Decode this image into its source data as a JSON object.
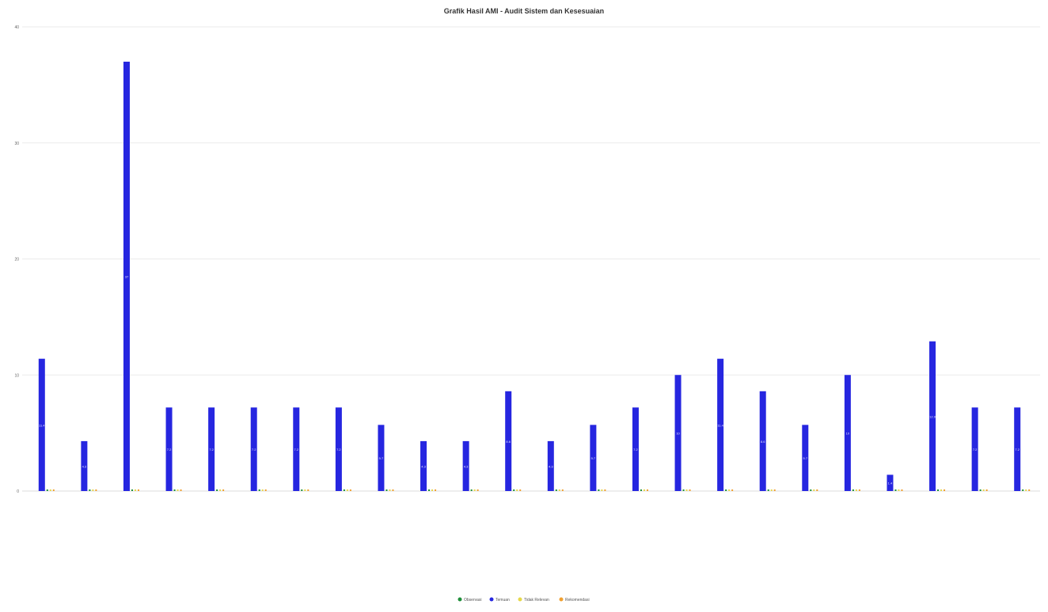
{
  "chart_data": {
    "type": "bar",
    "title": "Grafik Hasil AMI - Audit Sistem dan Kesesuaian",
    "xlabel": "",
    "ylabel": "",
    "ylim": [
      0,
      40
    ],
    "yticks": [
      "0",
      "10",
      "20",
      "30",
      "40"
    ],
    "grid": true,
    "legend_position": "bottom",
    "categories": [
      "",
      "",
      "",
      "",
      "",
      "",
      "",
      "",
      "",
      "",
      "",
      "",
      "",
      "",
      "",
      "",
      "",
      "",
      "",
      "",
      "",
      "",
      "",
      ""
    ],
    "series": [
      {
        "name": "Observasi",
        "color": "#1f8f3a",
        "values": [
          0,
          0,
          0,
          0,
          0,
          0,
          0,
          0,
          0,
          0,
          0,
          0,
          0,
          0,
          0,
          0,
          0,
          0,
          0,
          0,
          0,
          0,
          0,
          0
        ]
      },
      {
        "name": "Temuan",
        "color": "#2626e0",
        "values": [
          11.4,
          4.3,
          37,
          7.2,
          7.2,
          7.2,
          7.2,
          7.2,
          5.7,
          4.3,
          4.3,
          8.6,
          4.3,
          5.7,
          7.2,
          10,
          11.4,
          8.6,
          5.7,
          10,
          1.4,
          12.9,
          7.2,
          7.2
        ]
      },
      {
        "name": "Tidak Relevan",
        "color": "#e6d84a",
        "values": [
          0,
          0,
          0,
          0,
          0,
          0,
          0,
          0,
          0,
          0,
          0,
          0,
          0,
          0,
          0,
          0,
          0,
          0,
          0,
          0,
          0,
          0,
          0,
          0
        ]
      },
      {
        "name": "Rekomendasi",
        "color": "#f0a030",
        "values": [
          0,
          0,
          0,
          0,
          0,
          0,
          0,
          0,
          0,
          0,
          0,
          0,
          0,
          0,
          0,
          0,
          0,
          0,
          0,
          0,
          0,
          0,
          0,
          0
        ]
      }
    ]
  }
}
